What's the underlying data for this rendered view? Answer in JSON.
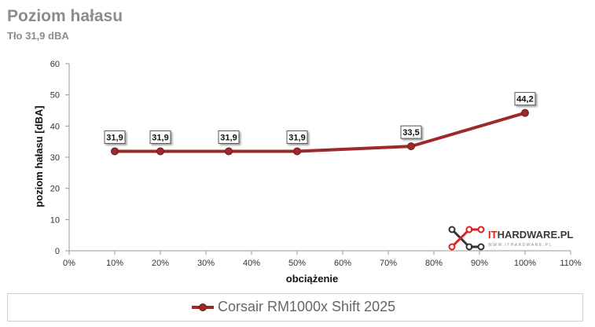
{
  "title": "Poziom hałasu",
  "subtitle": "Tło 31,9 dBA",
  "brand": {
    "prefix": "IT",
    "name": "HARDWARE.PL",
    "url": "WWW.ITHARDWARE.PL"
  },
  "colors": {
    "series": "#9b2a2a",
    "axis": "#999999",
    "title": "#8c8c8c"
  },
  "chart_data": {
    "type": "line",
    "title": "Poziom hałasu",
    "subtitle": "Tło 31,9 dBA",
    "xlabel": "obciążenie",
    "ylabel": "poziom hałasu [dBA]",
    "xlim": [
      0,
      110
    ],
    "ylim": [
      0,
      60
    ],
    "x_ticks": [
      "0%",
      "10%",
      "20%",
      "30%",
      "40%",
      "50%",
      "60%",
      "70%",
      "80%",
      "90%",
      "100%",
      "110%"
    ],
    "y_ticks": [
      "0",
      "10",
      "20",
      "30",
      "40",
      "50",
      "60"
    ],
    "grid": false,
    "legend": "bottom",
    "series": [
      {
        "name": "Corsair RM1000x Shift 2025",
        "x": [
          10,
          20,
          35,
          50,
          75,
          100
        ],
        "y": [
          31.9,
          31.9,
          31.9,
          31.9,
          33.5,
          44.2
        ],
        "labels": [
          "31,9",
          "31,9",
          "31,9",
          "31,9",
          "33,5",
          "44,2"
        ]
      }
    ]
  }
}
